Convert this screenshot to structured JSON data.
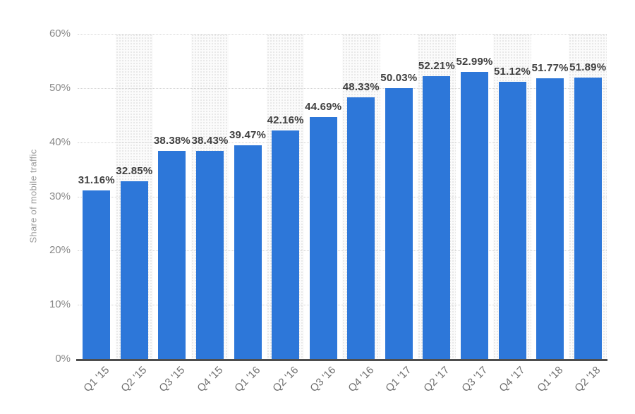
{
  "chart_data": {
    "type": "bar",
    "title": "",
    "xlabel": "",
    "ylabel": "Share of mobile traffic",
    "categories": [
      "Q1 '15",
      "Q2 '15",
      "Q3 '15",
      "Q4 '15",
      "Q1 '16",
      "Q2 '16",
      "Q3 '16",
      "Q4 '16",
      "Q1 '17",
      "Q2 '17",
      "Q3 '17",
      "Q4 '17",
      "Q1 '18",
      "Q2 '18"
    ],
    "values": [
      31.16,
      32.85,
      38.38,
      38.43,
      39.47,
      42.16,
      44.69,
      48.33,
      50.03,
      52.21,
      52.99,
      51.12,
      51.77,
      51.89
    ],
    "value_labels": [
      "31.16%",
      "32.85%",
      "38.38%",
      "38.43%",
      "39.47%",
      "42.16%",
      "44.69%",
      "48.33%",
      "50.03%",
      "52.21%",
      "52.99%",
      "51.12%",
      "51.77%",
      "51.89%"
    ],
    "ylim": [
      0,
      60
    ],
    "ytick_interval": 10,
    "ytick_labels": [
      "0%",
      "10%",
      "20%",
      "30%",
      "40%",
      "50%",
      "60%"
    ],
    "grid": "horizontal-dotted",
    "legend": "none",
    "plot_bands": "alternating-column-shading-on-even-columns",
    "colors": {
      "bar": "#2d77d9",
      "value_label": "#404040",
      "ytick_label": "#898989",
      "xtick_label": "#6f6f6f",
      "y_axis_title": "#9c9c9c",
      "axis_line": "#4d4d4d",
      "gridline": "#d4d4d4",
      "band_background": "#fbfbfb",
      "band_dot": "#e2e2e2"
    }
  }
}
